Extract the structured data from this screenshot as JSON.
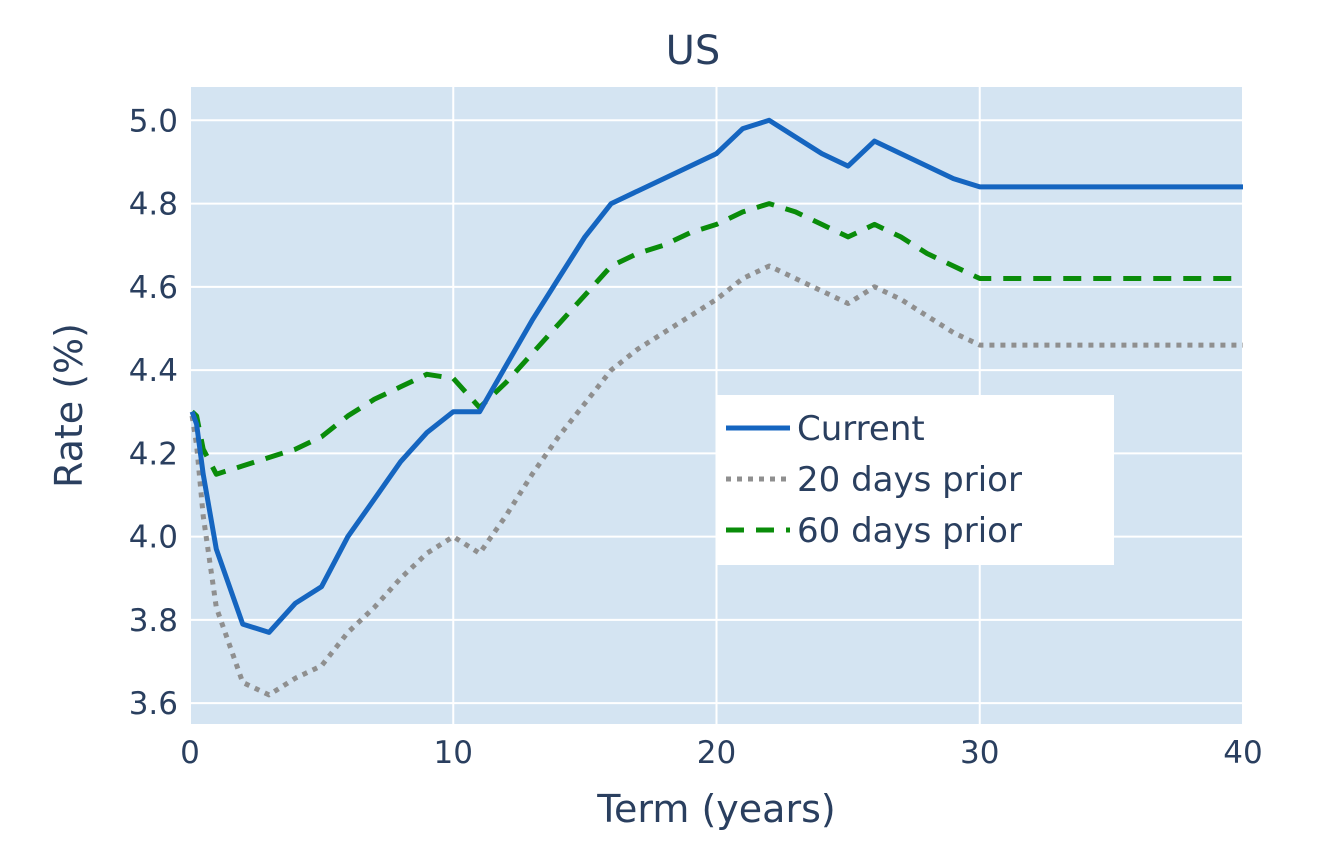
{
  "chart_data": {
    "type": "line",
    "title": "US",
    "xlabel": "Term (years)",
    "ylabel": "Rate (%)",
    "xlim": [
      0,
      40
    ],
    "ylim": [
      3.55,
      5.08
    ],
    "xticks": [
      0,
      10,
      20,
      30,
      40
    ],
    "yticks": [
      3.6,
      3.8,
      4.0,
      4.2,
      4.4,
      4.6,
      4.8,
      5.0
    ],
    "xtick_labels": [
      "0",
      "10",
      "20",
      "30",
      "40"
    ],
    "ytick_labels": [
      "3.6",
      "3.8",
      "4.0",
      "4.2",
      "4.4",
      "4.6",
      "4.8",
      "5.0"
    ],
    "grid": true,
    "plot_background": "#d4e4f2",
    "legend_position": "center-right",
    "series": [
      {
        "name": "Current",
        "color": "#1565c0",
        "dash": "solid",
        "x": [
          0.08,
          0.25,
          0.5,
          1,
          2,
          3,
          4,
          5,
          6,
          7,
          8,
          9,
          10,
          11,
          12,
          13,
          14,
          15,
          16,
          17,
          18,
          19,
          20,
          21,
          22,
          23,
          24,
          25,
          26,
          27,
          28,
          29,
          30,
          40
        ],
        "y": [
          4.3,
          4.27,
          4.15,
          3.97,
          3.79,
          3.77,
          3.84,
          3.88,
          4.0,
          4.09,
          4.18,
          4.25,
          4.3,
          4.3,
          4.41,
          4.52,
          4.62,
          4.72,
          4.8,
          4.83,
          4.86,
          4.89,
          4.92,
          4.98,
          5.0,
          4.96,
          4.92,
          4.89,
          4.95,
          4.92,
          4.89,
          4.86,
          4.84,
          4.84
        ]
      },
      {
        "name": "20 days prior",
        "color": "#8f8f8f",
        "dash": "dot",
        "x": [
          0.08,
          0.25,
          0.5,
          1,
          2,
          3,
          4,
          5,
          6,
          7,
          8,
          9,
          10,
          11,
          12,
          13,
          14,
          15,
          16,
          17,
          18,
          19,
          20,
          21,
          22,
          23,
          24,
          25,
          26,
          27,
          28,
          29,
          30,
          40
        ],
        "y": [
          4.29,
          4.22,
          4.05,
          3.83,
          3.65,
          3.62,
          3.66,
          3.69,
          3.77,
          3.83,
          3.9,
          3.96,
          4.0,
          3.96,
          4.05,
          4.15,
          4.24,
          4.32,
          4.4,
          4.45,
          4.49,
          4.53,
          4.57,
          4.62,
          4.65,
          4.62,
          4.59,
          4.56,
          4.6,
          4.57,
          4.53,
          4.49,
          4.46,
          4.46
        ]
      },
      {
        "name": "60 days prior",
        "color": "#0a8c0a",
        "dash": "dash",
        "x": [
          0.08,
          0.25,
          0.5,
          1,
          2,
          3,
          4,
          5,
          6,
          7,
          8,
          9,
          10,
          11,
          12,
          13,
          14,
          15,
          16,
          17,
          18,
          19,
          20,
          21,
          22,
          23,
          24,
          25,
          26,
          27,
          28,
          29,
          30,
          40
        ],
        "y": [
          4.3,
          4.29,
          4.21,
          4.15,
          4.17,
          4.19,
          4.21,
          4.24,
          4.29,
          4.33,
          4.36,
          4.39,
          4.38,
          4.31,
          4.37,
          4.44,
          4.51,
          4.58,
          4.65,
          4.68,
          4.7,
          4.73,
          4.75,
          4.78,
          4.8,
          4.78,
          4.75,
          4.72,
          4.75,
          4.72,
          4.68,
          4.65,
          4.62,
          4.62
        ]
      }
    ]
  }
}
